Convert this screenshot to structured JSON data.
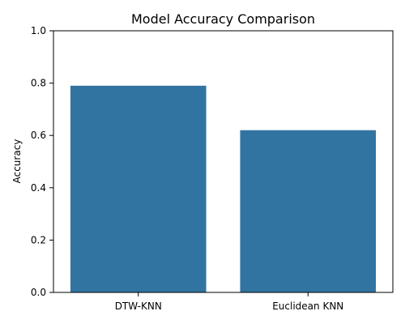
{
  "chart_data": {
    "type": "bar",
    "title": "Model Accuracy Comparison",
    "xlabel": "",
    "ylabel": "Accuracy",
    "categories": [
      "DTW-KNN",
      "Euclidean KNN"
    ],
    "values": [
      0.79,
      0.62
    ],
    "ylim": [
      0,
      1.0
    ],
    "yticks": [
      "0.0",
      "0.2",
      "0.4",
      "0.6",
      "0.8",
      "1.0"
    ],
    "bar_color": "#3274a1",
    "grid": false,
    "legend": "none"
  }
}
